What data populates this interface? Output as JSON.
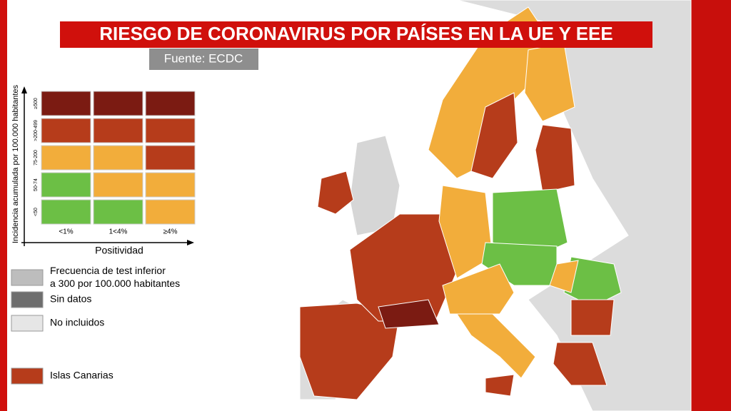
{
  "header": {
    "title": "RIESGO DE CORONAVIRUS POR PAÍSES EN LA UE Y EEE",
    "source": "Fuente: ECDC"
  },
  "legend_matrix": {
    "y_axis_label": "Incidencia acumulada por 100.000 habitantes",
    "x_axis_label": "Positividad",
    "rows": [
      "≥500",
      ">200-499",
      "75-200",
      "50-74",
      "<50"
    ],
    "columns": [
      "<1%",
      "1<4%",
      "≥4%"
    ],
    "cell_colors": [
      [
        "#7b1b12",
        "#7b1b12",
        "#7b1b12"
      ],
      [
        "#b63c1b",
        "#b63c1b",
        "#b63c1b"
      ],
      [
        "#f2ad3b",
        "#f2ad3b",
        "#b63c1b"
      ],
      [
        "#6cbf45",
        "#f2ad3b",
        "#f2ad3b"
      ],
      [
        "#6cbf45",
        "#6cbf45",
        "#f2ad3b"
      ]
    ]
  },
  "legend_items": [
    {
      "label": "Frecuencia de test inferior a 300 por 100.000 habitantes",
      "color": "#bdbdbd"
    },
    {
      "label": "Sin datos",
      "color": "#6e6e6e"
    },
    {
      "label": "No incluidos",
      "color": "#e6e6e6"
    },
    {
      "label": "Islas Canarias",
      "color": "#b63c1b"
    }
  ]
}
